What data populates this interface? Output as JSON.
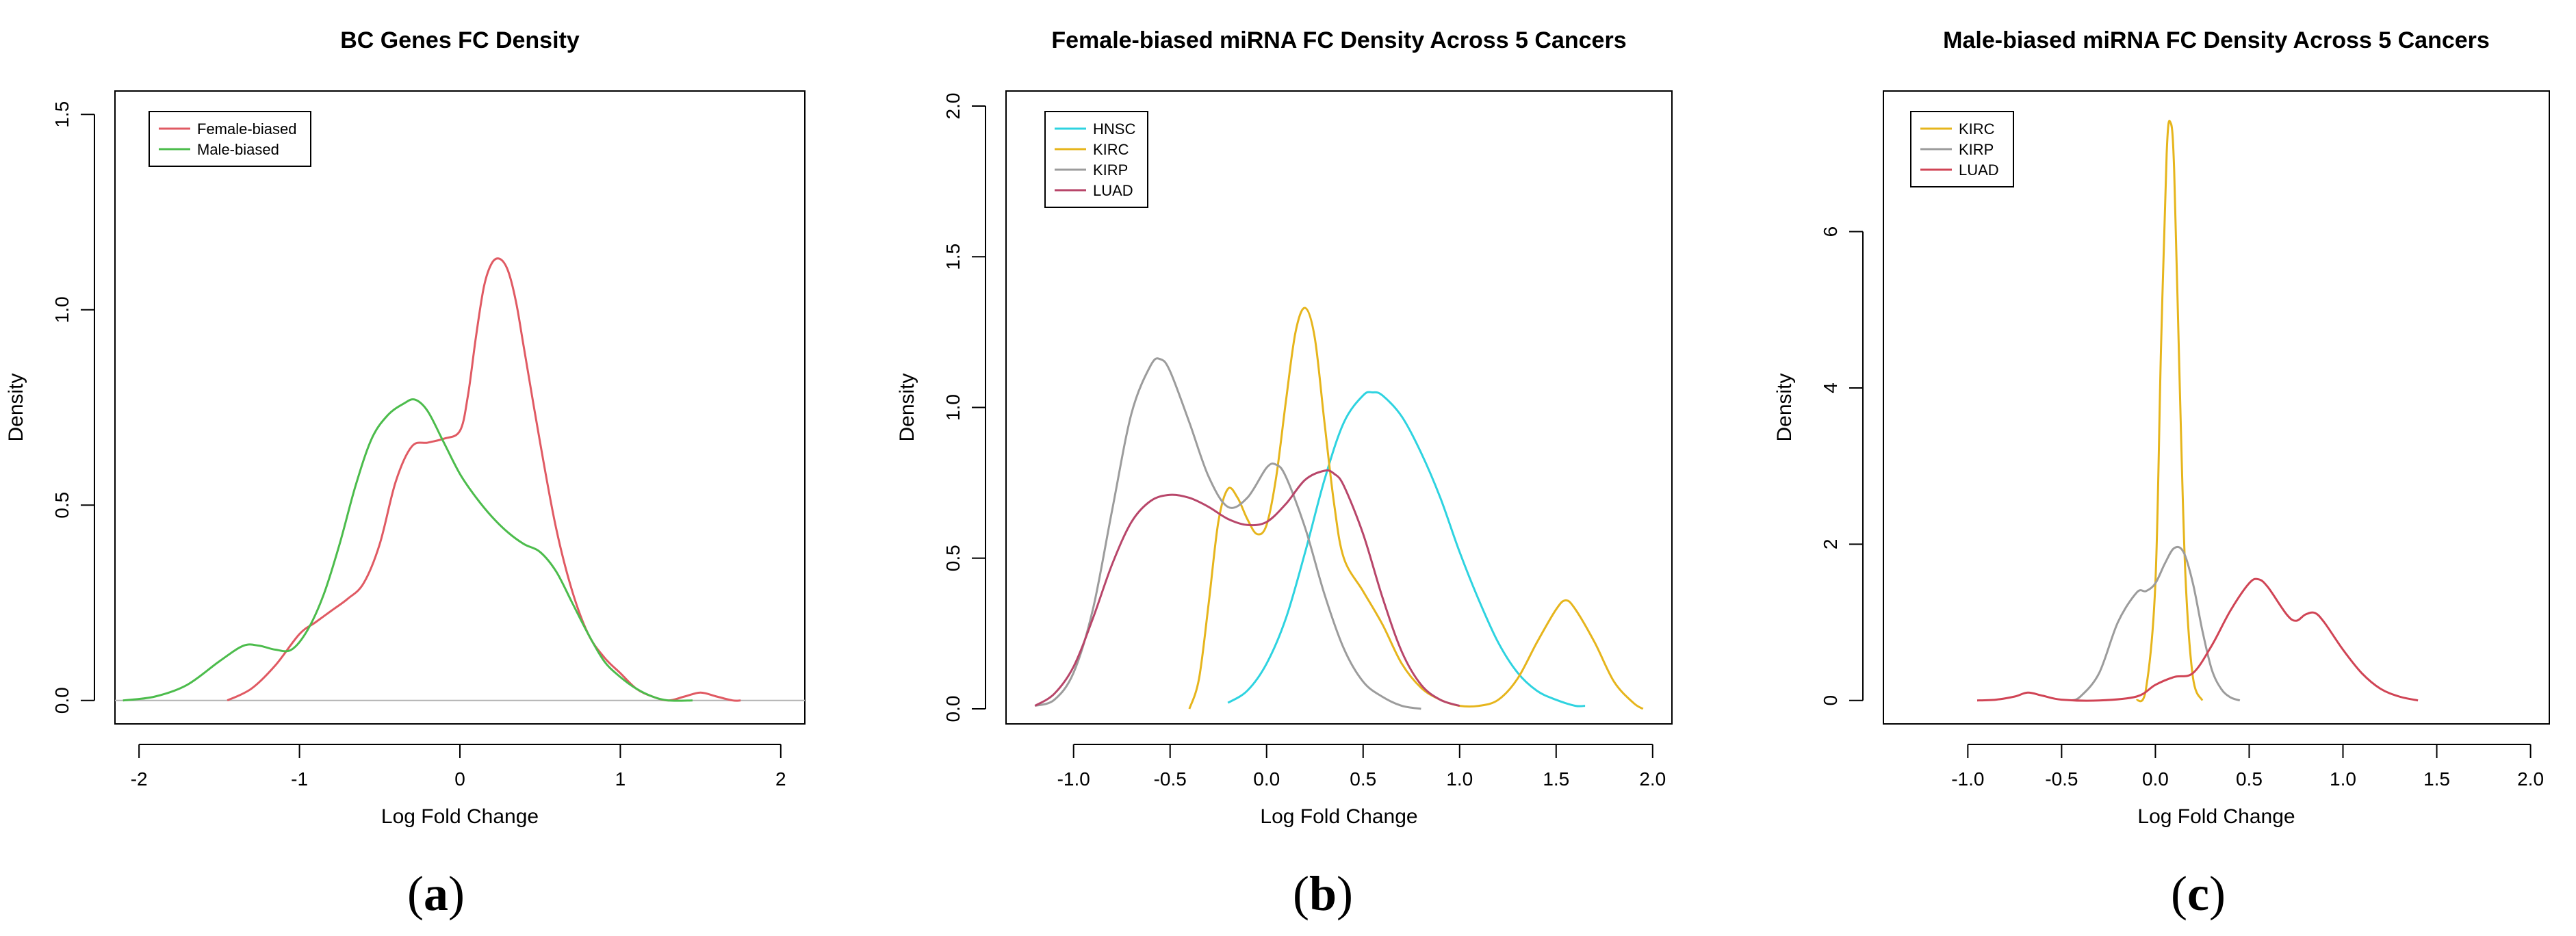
{
  "panels": [
    {
      "label": "a",
      "chart_data": {
        "type": "line",
        "title": "BC Genes FC Density",
        "xlabel": "Log Fold Change",
        "ylabel": "Density",
        "xlim": [
          -2.15,
          2.15
        ],
        "ylim": [
          -0.06,
          1.56
        ],
        "xticks": [
          -2,
          -1,
          0,
          1,
          2
        ],
        "xtick_labels": [
          "-2",
          "-1",
          "0",
          "1",
          "2"
        ],
        "yticks": [
          0.0,
          0.5,
          1.0,
          1.5
        ],
        "ytick_labels": [
          "0.0",
          "0.5",
          "1.0",
          "1.5"
        ],
        "baseline": true,
        "legend": "top-left",
        "series": [
          {
            "name": "Female-biased",
            "color": "#e05a63",
            "x": [
              -1.45,
              -1.3,
              -1.15,
              -1.0,
              -0.9,
              -0.8,
              -0.7,
              -0.6,
              -0.5,
              -0.4,
              -0.3,
              -0.2,
              -0.1,
              0.0,
              0.05,
              0.1,
              0.15,
              0.2,
              0.25,
              0.3,
              0.35,
              0.4,
              0.5,
              0.6,
              0.7,
              0.8,
              0.9,
              1.0,
              1.1,
              1.2,
              1.3,
              1.4,
              1.5,
              1.6,
              1.7,
              1.75
            ],
            "y": [
              0.0,
              0.03,
              0.09,
              0.17,
              0.2,
              0.23,
              0.26,
              0.3,
              0.4,
              0.56,
              0.65,
              0.66,
              0.67,
              0.69,
              0.78,
              0.93,
              1.06,
              1.12,
              1.13,
              1.1,
              1.02,
              0.9,
              0.66,
              0.44,
              0.28,
              0.17,
              0.11,
              0.07,
              0.03,
              0.01,
              0.0,
              0.01,
              0.02,
              0.01,
              0.0,
              0.0
            ]
          },
          {
            "name": "Male-biased",
            "color": "#4cbc4c",
            "x": [
              -2.1,
              -1.9,
              -1.7,
              -1.5,
              -1.35,
              -1.25,
              -1.15,
              -1.05,
              -0.95,
              -0.85,
              -0.75,
              -0.65,
              -0.55,
              -0.45,
              -0.35,
              -0.28,
              -0.2,
              -0.1,
              0.0,
              0.1,
              0.2,
              0.3,
              0.4,
              0.5,
              0.6,
              0.7,
              0.8,
              0.9,
              1.0,
              1.1,
              1.2,
              1.3,
              1.45
            ],
            "y": [
              0.0,
              0.01,
              0.04,
              0.1,
              0.14,
              0.14,
              0.13,
              0.13,
              0.18,
              0.27,
              0.4,
              0.55,
              0.67,
              0.73,
              0.76,
              0.77,
              0.74,
              0.66,
              0.58,
              0.52,
              0.47,
              0.43,
              0.4,
              0.38,
              0.33,
              0.25,
              0.17,
              0.1,
              0.06,
              0.03,
              0.01,
              0.0,
              0.0
            ]
          }
        ]
      }
    },
    {
      "label": "b",
      "chart_data": {
        "type": "line",
        "title": "Female-biased miRNA FC Density Across 5 Cancers",
        "xlabel": "Log Fold Change",
        "ylabel": "Density",
        "xlim": [
          -1.35,
          2.1
        ],
        "ylim": [
          -0.05,
          2.05
        ],
        "xticks": [
          -1.0,
          -0.5,
          0.0,
          0.5,
          1.0,
          1.5,
          2.0
        ],
        "xtick_labels": [
          "-1.0",
          "-0.5",
          "0.0",
          "0.5",
          "1.0",
          "1.5",
          "2.0"
        ],
        "yticks": [
          0.0,
          0.5,
          1.0,
          1.5,
          2.0
        ],
        "ytick_labels": [
          "0.0",
          "0.5",
          "1.0",
          "1.5",
          "2.0"
        ],
        "legend": "top-left",
        "series": [
          {
            "name": "HNSC",
            "color": "#2ed3e0",
            "x": [
              -0.2,
              -0.1,
              0.0,
              0.1,
              0.2,
              0.3,
              0.4,
              0.5,
              0.55,
              0.6,
              0.7,
              0.8,
              0.9,
              1.0,
              1.1,
              1.2,
              1.3,
              1.4,
              1.5,
              1.6,
              1.65
            ],
            "y": [
              0.02,
              0.06,
              0.15,
              0.3,
              0.52,
              0.76,
              0.95,
              1.04,
              1.05,
              1.04,
              0.97,
              0.85,
              0.7,
              0.52,
              0.36,
              0.22,
              0.12,
              0.06,
              0.03,
              0.01,
              0.01
            ]
          },
          {
            "name": "KIRC",
            "color": "#e6b51c",
            "x": [
              -0.4,
              -0.35,
              -0.3,
              -0.25,
              -0.2,
              -0.15,
              -0.1,
              -0.05,
              0.0,
              0.05,
              0.1,
              0.15,
              0.2,
              0.25,
              0.3,
              0.35,
              0.4,
              0.5,
              0.6,
              0.7,
              0.8,
              0.9,
              1.0,
              1.1,
              1.2,
              1.3,
              1.4,
              1.5,
              1.55,
              1.6,
              1.7,
              1.8,
              1.9,
              1.95
            ],
            "y": [
              0.0,
              0.1,
              0.35,
              0.62,
              0.73,
              0.7,
              0.63,
              0.58,
              0.61,
              0.77,
              1.02,
              1.25,
              1.33,
              1.23,
              0.95,
              0.68,
              0.5,
              0.39,
              0.28,
              0.15,
              0.07,
              0.03,
              0.01,
              0.01,
              0.03,
              0.1,
              0.22,
              0.33,
              0.36,
              0.33,
              0.22,
              0.09,
              0.02,
              0.0
            ]
          },
          {
            "name": "KIRP",
            "color": "#9c9c9c",
            "x": [
              -1.2,
              -1.1,
              -1.0,
              -0.9,
              -0.8,
              -0.7,
              -0.6,
              -0.55,
              -0.5,
              -0.4,
              -0.3,
              -0.2,
              -0.1,
              0.0,
              0.05,
              0.1,
              0.2,
              0.3,
              0.4,
              0.5,
              0.6,
              0.7,
              0.8
            ],
            "y": [
              0.01,
              0.03,
              0.12,
              0.33,
              0.66,
              0.98,
              1.14,
              1.16,
              1.12,
              0.95,
              0.77,
              0.67,
              0.7,
              0.8,
              0.81,
              0.77,
              0.6,
              0.38,
              0.2,
              0.09,
              0.04,
              0.01,
              0.0
            ]
          },
          {
            "name": "LUAD",
            "color": "#b8466a",
            "x": [
              -1.2,
              -1.1,
              -1.0,
              -0.9,
              -0.8,
              -0.7,
              -0.6,
              -0.5,
              -0.4,
              -0.3,
              -0.2,
              -0.1,
              0.0,
              0.1,
              0.2,
              0.3,
              0.35,
              0.4,
              0.5,
              0.6,
              0.7,
              0.8,
              0.9,
              1.0
            ],
            "y": [
              0.01,
              0.05,
              0.14,
              0.3,
              0.48,
              0.62,
              0.69,
              0.71,
              0.7,
              0.67,
              0.63,
              0.61,
              0.62,
              0.68,
              0.76,
              0.79,
              0.78,
              0.74,
              0.58,
              0.37,
              0.19,
              0.08,
              0.03,
              0.01
            ]
          }
        ]
      }
    },
    {
      "label": "c",
      "chart_data": {
        "type": "line",
        "title": "Male-biased miRNA FC Density Across 5 Cancers",
        "xlabel": "Log Fold Change",
        "ylabel": "Density",
        "xlim": [
          -1.45,
          2.1
        ],
        "ylim": [
          -0.3,
          7.8
        ],
        "xticks": [
          -1.0,
          -0.5,
          0.0,
          0.5,
          1.0,
          1.5,
          2.0
        ],
        "xtick_labels": [
          "-1.0",
          "-0.5",
          "0.0",
          "0.5",
          "1.0",
          "1.5",
          "2.0"
        ],
        "yticks": [
          0,
          2,
          4,
          6
        ],
        "ytick_labels": [
          "0",
          "2",
          "4",
          "6"
        ],
        "legend": "top-left",
        "series": [
          {
            "name": "KIRC",
            "color": "#e6b51c",
            "x": [
              -0.1,
              -0.05,
              0.0,
              0.03,
              0.06,
              0.08,
              0.1,
              0.13,
              0.16,
              0.2,
              0.25
            ],
            "y": [
              0.0,
              0.15,
              1.5,
              4.5,
              7.0,
              7.4,
              6.8,
              4.0,
              1.6,
              0.3,
              0.0
            ]
          },
          {
            "name": "KIRP",
            "color": "#9c9c9c",
            "x": [
              -0.45,
              -0.4,
              -0.3,
              -0.2,
              -0.1,
              -0.05,
              0.0,
              0.05,
              0.1,
              0.15,
              0.2,
              0.25,
              0.3,
              0.35,
              0.4,
              0.45
            ],
            "y": [
              0.0,
              0.05,
              0.35,
              1.0,
              1.38,
              1.4,
              1.5,
              1.75,
              1.95,
              1.9,
              1.5,
              0.9,
              0.4,
              0.15,
              0.04,
              0.0
            ]
          },
          {
            "name": "LUAD",
            "color": "#d04455",
            "x": [
              -0.95,
              -0.85,
              -0.75,
              -0.68,
              -0.6,
              -0.5,
              -0.3,
              -0.1,
              0.0,
              0.1,
              0.2,
              0.3,
              0.4,
              0.5,
              0.55,
              0.6,
              0.7,
              0.75,
              0.8,
              0.85,
              0.9,
              1.0,
              1.1,
              1.2,
              1.3,
              1.4
            ],
            "y": [
              0.0,
              0.01,
              0.05,
              0.1,
              0.06,
              0.01,
              0.0,
              0.05,
              0.2,
              0.3,
              0.35,
              0.7,
              1.15,
              1.5,
              1.55,
              1.45,
              1.1,
              1.02,
              1.1,
              1.12,
              1.0,
              0.65,
              0.35,
              0.15,
              0.05,
              0.0
            ]
          }
        ]
      }
    }
  ]
}
